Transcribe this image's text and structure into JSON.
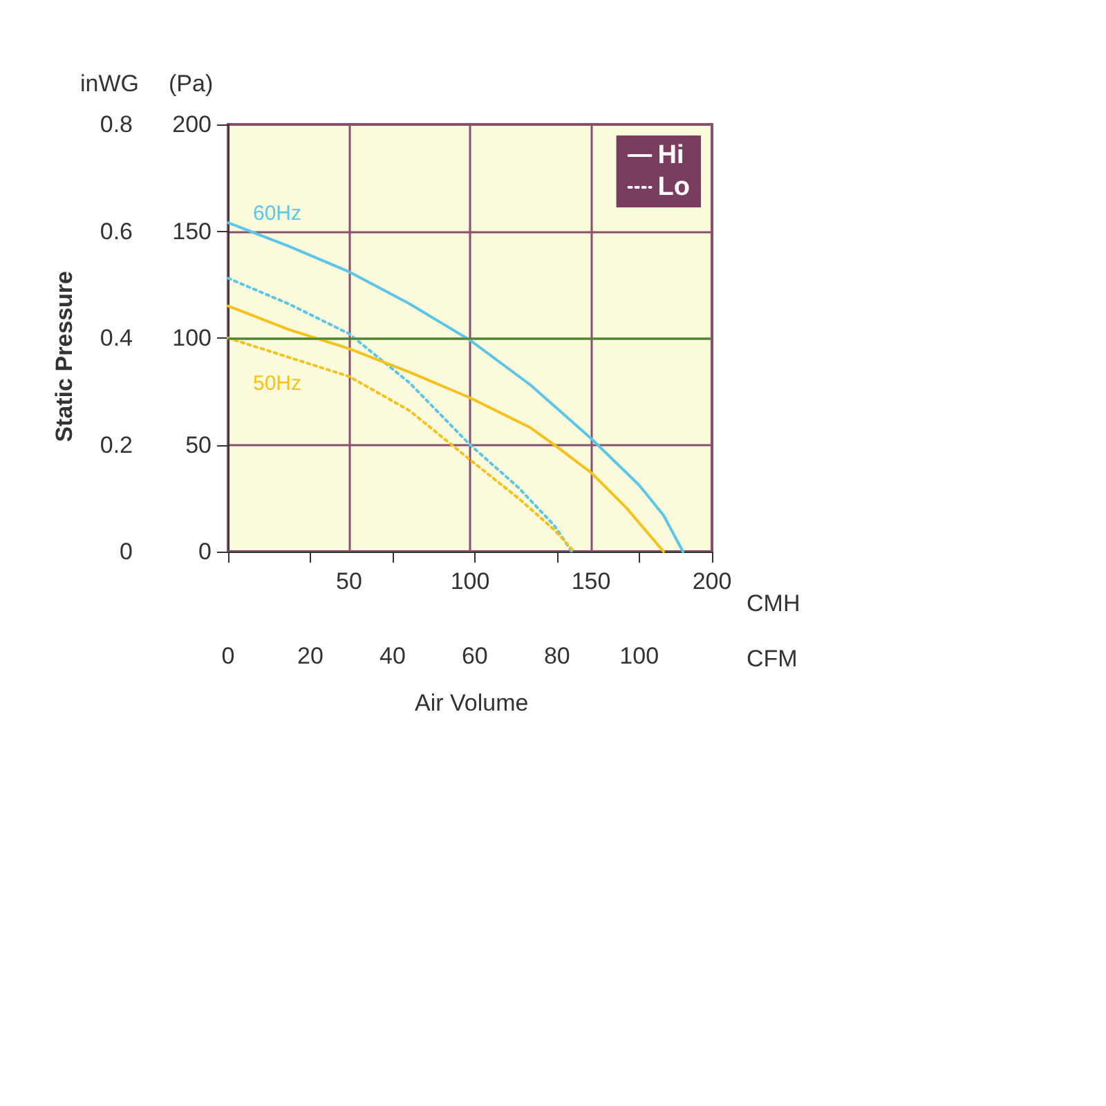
{
  "chart_data": {
    "type": "line",
    "xlabel": "CMH",
    "x2label": "CFM",
    "ylabel": "(Pa)",
    "y2label": "inWG",
    "annotations": [
      "Static Pressure",
      "Air Volume",
      "60Hz",
      "50Hz"
    ],
    "xlim": [
      0,
      200
    ],
    "xticks": [
      {
        "value": 0,
        "label": null
      },
      50,
      100,
      150,
      200
    ],
    "x2lim": [
      0,
      117.7
    ],
    "x2ticks": [
      0,
      20,
      40,
      60,
      80,
      100,
      {
        "value": 117.7,
        "label": null
      }
    ],
    "ylim": [
      0,
      200
    ],
    "yticks": [
      0,
      50,
      100,
      150,
      200
    ],
    "y2lim": [
      0,
      0.8
    ],
    "y2ticks": [
      0,
      0.2,
      0.4,
      0.6,
      0.8
    ],
    "grid": true,
    "legend": "top right",
    "marker": "none",
    "ref_lines": [
      {
        "axis": "y",
        "value": 100,
        "color": "#4a8a2a"
      }
    ],
    "series": [
      {
        "name": "Hi",
        "color": "#5bc6e6",
        "line_style": "solid",
        "x": [
          0,
          25,
          50,
          75,
          100,
          125,
          150,
          170,
          180,
          188
        ],
        "values": [
          154,
          143,
          131,
          116,
          99,
          78,
          53,
          31,
          17,
          0
        ]
      },
      {
        "name": "Lo",
        "color": "#5bc6e6",
        "line_style": "dotted",
        "x": [
          0,
          25,
          50,
          75,
          100,
          120,
          135,
          142
        ],
        "values": [
          128,
          116,
          102,
          79,
          50,
          30,
          12,
          0
        ]
      },
      {
        "color": "#f5c21b",
        "line_style": "solid",
        "x": [
          0,
          25,
          50,
          75,
          100,
          125,
          136,
          150,
          165,
          180
        ],
        "values": [
          115,
          104,
          95,
          84,
          72,
          58,
          49,
          37,
          20,
          0
        ]
      },
      {
        "color": "#f5c21b",
        "line_style": "dotted",
        "x": [
          0,
          25,
          50,
          75,
          100,
          120,
          135,
          143
        ],
        "values": [
          100,
          91,
          82,
          66,
          43,
          25,
          10,
          0
        ]
      }
    ]
  }
}
